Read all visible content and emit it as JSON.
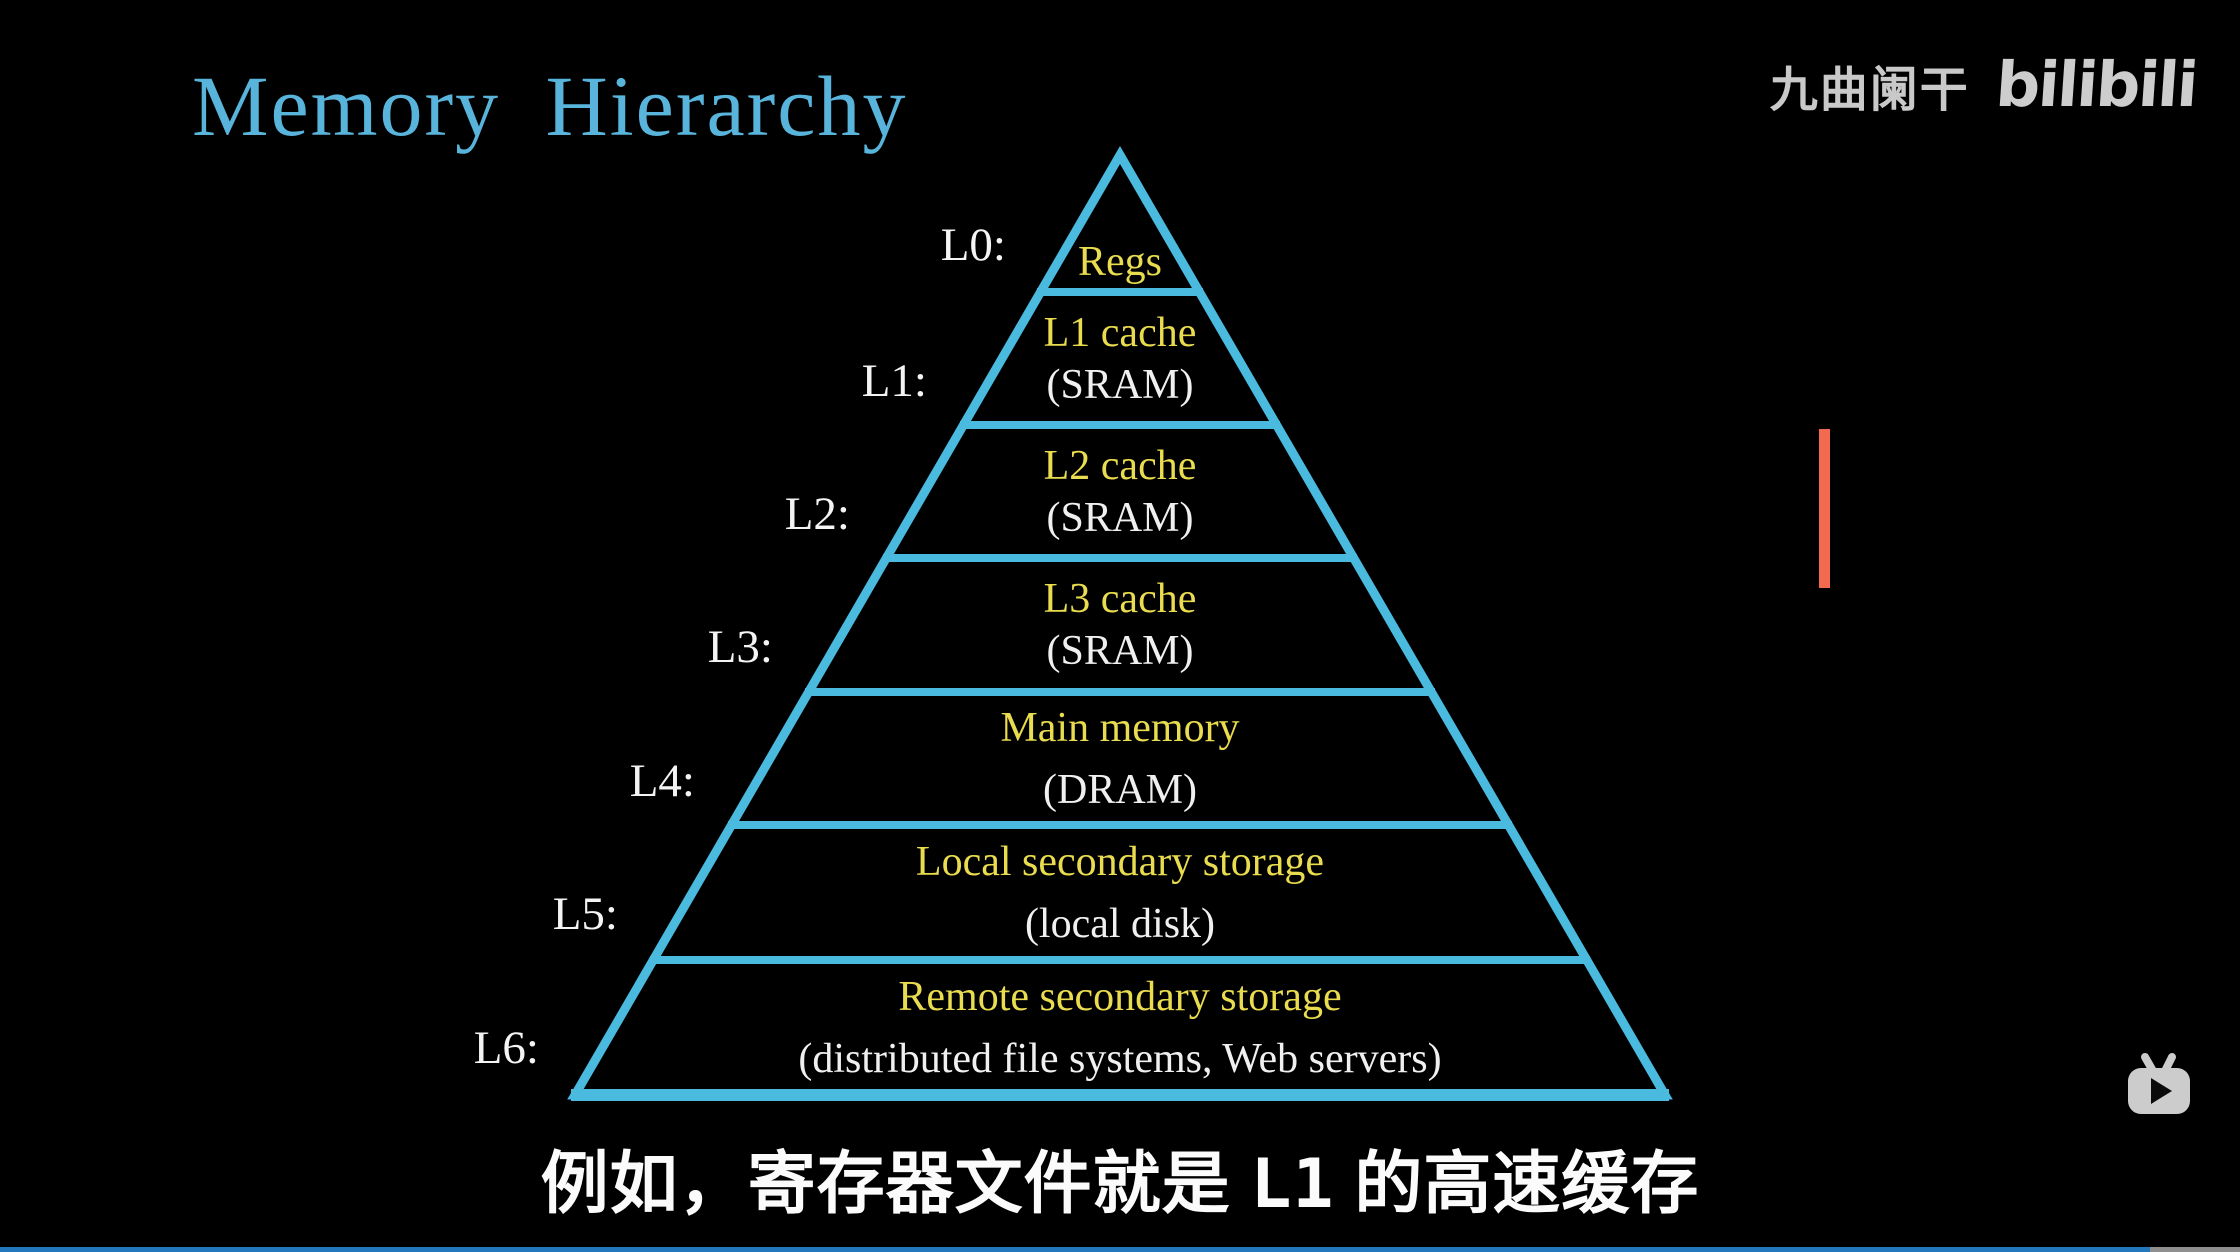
{
  "title": {
    "text": "Memory Hierarchy",
    "color": "#58B4DB"
  },
  "watermark": {
    "author": "九曲阑干",
    "logo": "bilibili"
  },
  "pyramid": {
    "stroke_color": "#4ABADF",
    "level_title_color": "#E9DC4E",
    "level_subtitle_color": "#F0F0F0",
    "label_color": "#F4F4F4",
    "levels": [
      {
        "label": "L0:",
        "title": "Regs",
        "subtitle": ""
      },
      {
        "label": "L1:",
        "title": "L1 cache",
        "subtitle": "(SRAM)"
      },
      {
        "label": "L2:",
        "title": "L2 cache",
        "subtitle": "(SRAM)"
      },
      {
        "label": "L3:",
        "title": "L3 cache",
        "subtitle": "(SRAM)"
      },
      {
        "label": "L4:",
        "title": "Main memory",
        "subtitle": "(DRAM)"
      },
      {
        "label": "L5:",
        "title": "Local secondary storage",
        "subtitle": "(local disk)"
      },
      {
        "label": "L6:",
        "title": "Remote secondary storage",
        "subtitle": "(distributed file systems, Web servers)"
      }
    ]
  },
  "marker": {
    "color": "#F46A50"
  },
  "caption": {
    "pre": "例如，寄存器文件就是 ",
    "code": "L1",
    "post": " 的高速缓存"
  },
  "player": {
    "tv_icon": "bilibili-tv-play-icon",
    "progress_percent": 96,
    "progress_fill_color": "#2277BD",
    "progress_rest_color": "#8F8F8F"
  }
}
